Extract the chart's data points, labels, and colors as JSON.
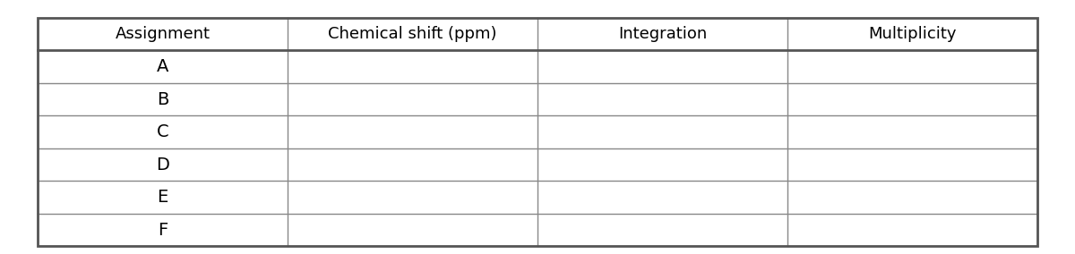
{
  "headers": [
    "Assignment",
    "Chemical shift (ppm)",
    "Integration",
    "Multiplicity"
  ],
  "rows": [
    "A",
    "B",
    "C",
    "D",
    "E",
    "F"
  ],
  "background_color": "#ffffff",
  "header_line_color": "#555555",
  "row_line_color": "#888888",
  "outer_border_color": "#555555",
  "header_fontsize": 13,
  "cell_fontsize": 14
}
